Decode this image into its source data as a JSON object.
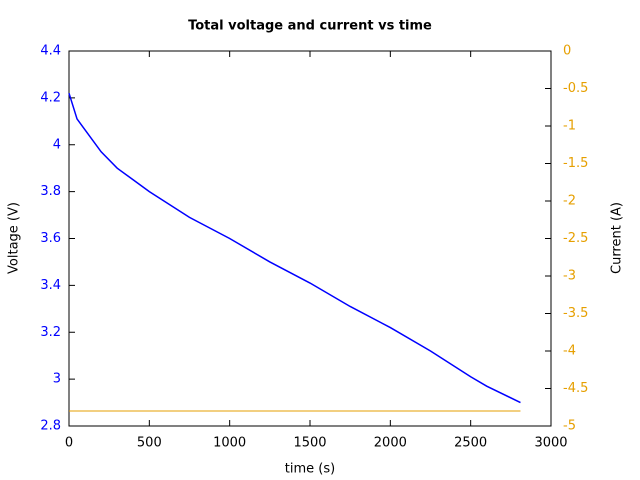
{
  "chart_data": {
    "type": "line",
    "title": "Total voltage and current vs time",
    "x_label": "time (s)",
    "y_label": "Voltage (V)",
    "y2_label": "Current (A)",
    "x": [
      0,
      50,
      200,
      300,
      400,
      500,
      750,
      1000,
      1250,
      1500,
      1750,
      2000,
      2250,
      2500,
      2600,
      2810
    ],
    "series": [
      {
        "name": "Voltage",
        "color": "#0000ff",
        "axis": "y",
        "values": [
          4.22,
          4.11,
          3.97,
          3.9,
          3.85,
          3.8,
          3.69,
          3.6,
          3.5,
          3.41,
          3.31,
          3.22,
          3.12,
          3.01,
          2.97,
          2.9
        ]
      },
      {
        "name": "Current",
        "color": "#e69f00",
        "axis": "y2",
        "values": [
          -4.8,
          -4.8,
          -4.8,
          -4.8,
          -4.8,
          -4.8,
          -4.8,
          -4.8,
          -4.8,
          -4.8,
          -4.8,
          -4.8,
          -4.8,
          -4.8,
          -4.8,
          -4.8
        ]
      }
    ],
    "xlim": [
      0,
      3000
    ],
    "xticks": [
      0,
      500,
      1000,
      1500,
      2000,
      2500,
      3000
    ],
    "ylim": [
      2.8,
      4.4
    ],
    "yticks": [
      2.8,
      3,
      3.2,
      3.4,
      3.6,
      3.8,
      4,
      4.2,
      4.4
    ],
    "y2lim": [
      -5,
      0
    ],
    "y2ticks": [
      -5,
      -4.5,
      -4,
      -3.5,
      -3,
      -2.5,
      -2,
      -1.5,
      -1,
      -0.5,
      0
    ],
    "grid": false
  }
}
